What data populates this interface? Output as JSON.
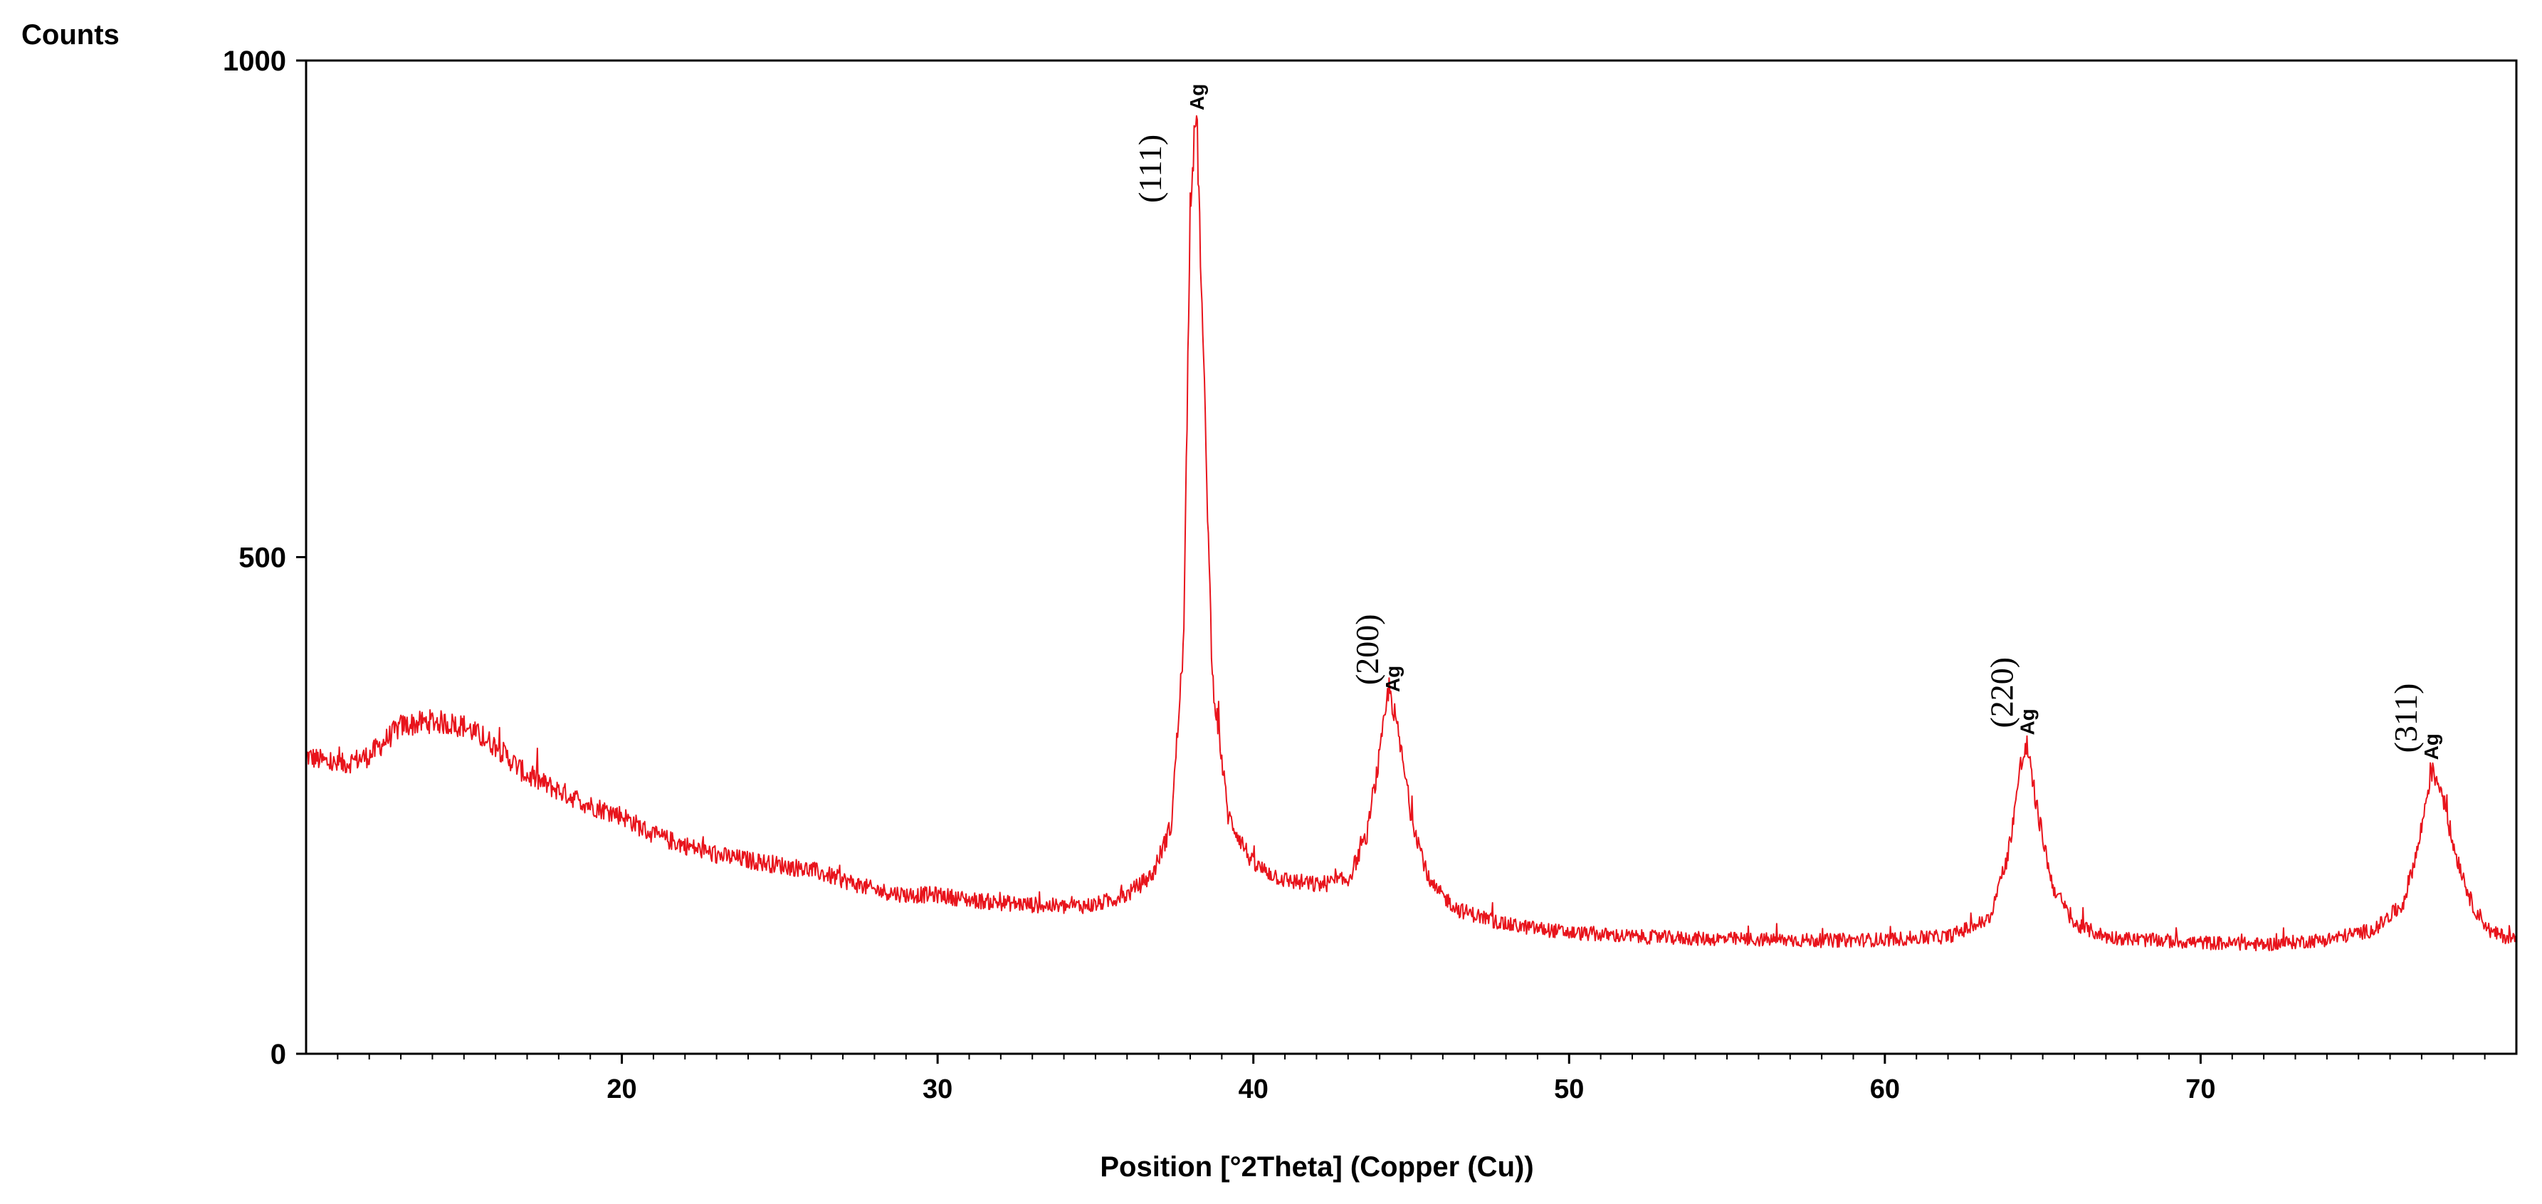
{
  "chart_data": {
    "type": "line",
    "ylabel": "Counts",
    "xlabel": "Position [°2Theta] (Copper (Cu))",
    "xlim": [
      10,
      80
    ],
    "ylim": [
      0,
      1000
    ],
    "x_ticks": [
      {
        "value": 20,
        "label": "20"
      },
      {
        "value": 30,
        "label": "30"
      },
      {
        "value": 40,
        "label": "40"
      },
      {
        "value": 50,
        "label": "50"
      },
      {
        "value": 60,
        "label": "60"
      },
      {
        "value": 70,
        "label": "70"
      }
    ],
    "y_ticks": [
      {
        "value": 0,
        "label": "0"
      },
      {
        "value": 500,
        "label": "500"
      },
      {
        "value": 1000,
        "label": "1000"
      }
    ],
    "grid": false,
    "line_color": "#e8141c",
    "series": [
      {
        "x": [
          10,
          11,
          12,
          13,
          14,
          15,
          16,
          17,
          18,
          19,
          20,
          21,
          22,
          23,
          24,
          25,
          26,
          27,
          28,
          29,
          30,
          31,
          32,
          33,
          34,
          35,
          36,
          36.8,
          37.4,
          37.8,
          38.0,
          38.2,
          38.4,
          38.7,
          39.2,
          40,
          41,
          42,
          43,
          43.6,
          44.0,
          44.3,
          44.6,
          45.0,
          45.6,
          46.5,
          48,
          50,
          52,
          54,
          56,
          58,
          60,
          62,
          63.3,
          63.9,
          64.3,
          64.5,
          64.8,
          65.3,
          66,
          67,
          68,
          70,
          72,
          74,
          75.5,
          76.4,
          76.9,
          77.3,
          77.6,
          78.0,
          78.6,
          79.2,
          80
        ],
        "y": [
          300,
          290,
          300,
          330,
          335,
          330,
          310,
          280,
          265,
          250,
          240,
          220,
          210,
          200,
          195,
          190,
          185,
          175,
          165,
          160,
          160,
          155,
          152,
          150,
          148,
          150,
          160,
          180,
          230,
          420,
          860,
          950,
          720,
          380,
          240,
          190,
          175,
          170,
          175,
          220,
          300,
          370,
          320,
          240,
          170,
          145,
          130,
          122,
          118,
          116,
          115,
          114,
          115,
          118,
          135,
          200,
          290,
          310,
          250,
          170,
          130,
          118,
          115,
          112,
          110,
          115,
          125,
          150,
          210,
          285,
          270,
          210,
          150,
          122,
          115
        ]
      }
    ],
    "annotations": [
      {
        "x": 38.2,
        "label": "(111)",
        "phase": "Ag"
      },
      {
        "x": 44.4,
        "label": "(200)",
        "phase": "Ag"
      },
      {
        "x": 64.5,
        "label": "(220)",
        "phase": "Ag"
      },
      {
        "x": 77.3,
        "label": "(311)",
        "phase": "Ag"
      }
    ]
  }
}
